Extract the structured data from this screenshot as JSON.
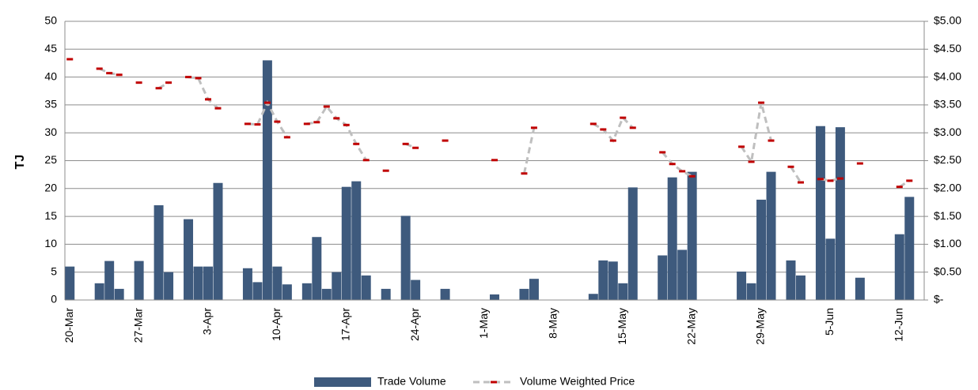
{
  "chart_data": {
    "type": "bar_line",
    "y_label": "TJ",
    "categories": [
      "20-Mar",
      null,
      null,
      null,
      null,
      null,
      null,
      "27-Mar",
      null,
      null,
      null,
      null,
      null,
      null,
      "3-Apr",
      null,
      null,
      null,
      null,
      null,
      null,
      "10-Apr",
      null,
      null,
      null,
      null,
      null,
      null,
      "17-Apr",
      null,
      null,
      null,
      null,
      null,
      null,
      "24-Apr",
      null,
      null,
      null,
      null,
      null,
      null,
      "1-May",
      null,
      null,
      null,
      null,
      null,
      null,
      "8-May",
      null,
      null,
      null,
      null,
      null,
      null,
      "15-May",
      null,
      null,
      null,
      null,
      null,
      null,
      "22-May",
      null,
      null,
      null,
      null,
      null,
      null,
      "29-May",
      null,
      null,
      null,
      null,
      null,
      null,
      "5-Jun",
      null,
      null,
      null,
      null,
      null,
      null,
      "12-Jun",
      null,
      null
    ],
    "series": [
      {
        "name": "Trade Volume",
        "type": "bar",
        "color": "#3e5a7d",
        "values": [
          6,
          null,
          null,
          3,
          7,
          2,
          null,
          7,
          null,
          17,
          5,
          null,
          14.5,
          6,
          6,
          21,
          null,
          null,
          5.7,
          3.2,
          43,
          6,
          2.8,
          null,
          3,
          11.3,
          2,
          5,
          20.3,
          21.3,
          4.4,
          null,
          2,
          null,
          15.1,
          3.6,
          null,
          null,
          2,
          null,
          null,
          null,
          null,
          1,
          null,
          null,
          2,
          3.8,
          null,
          null,
          null,
          null,
          null,
          1.1,
          7.1,
          6.9,
          3,
          20.2,
          null,
          null,
          8,
          22,
          9,
          23,
          null,
          null,
          null,
          null,
          5.1,
          3,
          18,
          23,
          null,
          7.1,
          4.4,
          null,
          31.2,
          11,
          31,
          null,
          4,
          null,
          null,
          null,
          11.8,
          18.5,
          null
        ]
      },
      {
        "name": "Volume Weighted Price",
        "type": "line",
        "axis": "y2",
        "color": "#bfbfbf",
        "marker_color": "#c00000",
        "values": [
          4.32,
          null,
          null,
          4.15,
          4.07,
          4.04,
          null,
          3.9,
          null,
          3.8,
          3.9,
          null,
          4.0,
          3.98,
          3.6,
          3.44,
          null,
          null,
          3.16,
          3.15,
          3.54,
          3.2,
          2.92,
          null,
          3.16,
          3.19,
          3.47,
          3.26,
          3.14,
          2.8,
          2.51,
          null,
          2.32,
          null,
          2.8,
          2.73,
          null,
          null,
          2.86,
          null,
          null,
          null,
          null,
          2.51,
          null,
          null,
          2.27,
          3.09,
          null,
          null,
          null,
          null,
          null,
          3.16,
          3.06,
          2.86,
          3.27,
          3.09,
          null,
          null,
          2.65,
          2.44,
          2.31,
          2.22,
          null,
          null,
          null,
          null,
          2.75,
          2.48,
          3.54,
          2.86,
          null,
          2.39,
          2.11,
          null,
          2.17,
          2.14,
          2.18,
          null,
          2.45,
          null,
          null,
          null,
          2.03,
          2.14,
          null
        ]
      }
    ],
    "ylim": [
      0,
      50
    ],
    "yticks": [
      0,
      5,
      10,
      15,
      20,
      25,
      30,
      35,
      40,
      45,
      50
    ],
    "y2lim": [
      0,
      5
    ],
    "y2ticks": [
      {
        "value": 0,
        "label": "$-"
      },
      {
        "value": 0.5,
        "label": "$0.50"
      },
      {
        "value": 1,
        "label": "$1.00"
      },
      {
        "value": 1.5,
        "label": "$1.50"
      },
      {
        "value": 2,
        "label": "$2.00"
      },
      {
        "value": 2.5,
        "label": "$2.50"
      },
      {
        "value": 3,
        "label": "$3.00"
      },
      {
        "value": 3.5,
        "label": "$3.50"
      },
      {
        "value": 4,
        "label": "$4.00"
      },
      {
        "value": 4.5,
        "label": "$4.50"
      },
      {
        "value": 5,
        "label": "$5.00"
      }
    ],
    "grid": true,
    "legend": "bottom"
  }
}
